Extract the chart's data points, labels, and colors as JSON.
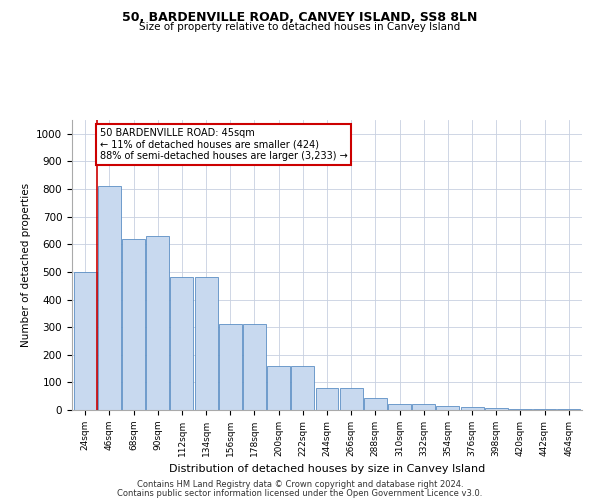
{
  "title": "50, BARDENVILLE ROAD, CANVEY ISLAND, SS8 8LN",
  "subtitle": "Size of property relative to detached houses in Canvey Island",
  "xlabel": "Distribution of detached houses by size in Canvey Island",
  "ylabel": "Number of detached properties",
  "categories": [
    "24sqm",
    "46sqm",
    "68sqm",
    "90sqm",
    "112sqm",
    "134sqm",
    "156sqm",
    "178sqm",
    "200sqm",
    "222sqm",
    "244sqm",
    "266sqm",
    "288sqm",
    "310sqm",
    "332sqm",
    "354sqm",
    "376sqm",
    "398sqm",
    "420sqm",
    "442sqm",
    "464sqm"
  ],
  "values": [
    500,
    810,
    620,
    630,
    480,
    480,
    310,
    310,
    160,
    160,
    80,
    80,
    42,
    22,
    22,
    15,
    10,
    8,
    5,
    2,
    2
  ],
  "bar_color": "#c8d9ef",
  "bar_edge_color": "#5b8ec4",
  "grid_color": "#c8d0e0",
  "background_color": "#ffffff",
  "annotation_text": "50 BARDENVILLE ROAD: 45sqm\n← 11% of detached houses are smaller (424)\n88% of semi-detached houses are larger (3,233) →",
  "annotation_box_color": "#ffffff",
  "annotation_box_edge": "#cc0000",
  "red_line_color": "#cc0000",
  "property_line_x": 0.5,
  "ylim": [
    0,
    1050
  ],
  "yticks": [
    0,
    100,
    200,
    300,
    400,
    500,
    600,
    700,
    800,
    900,
    1000
  ],
  "footer1": "Contains HM Land Registry data © Crown copyright and database right 2024.",
  "footer2": "Contains public sector information licensed under the Open Government Licence v3.0."
}
